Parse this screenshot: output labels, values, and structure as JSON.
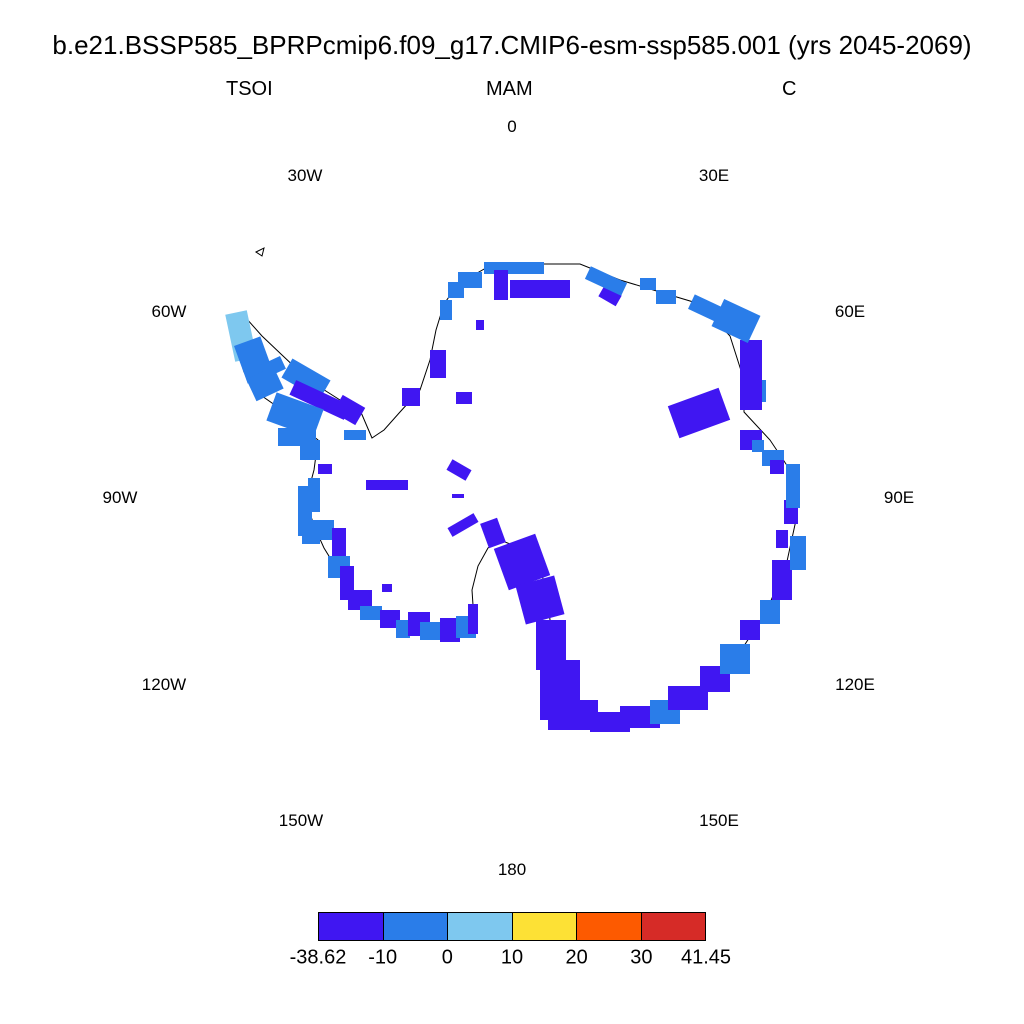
{
  "title": "b.e21.BSSP585_BPRPcmip6.f09_g17.CMIP6-esm-ssp585.001 (yrs 2045-2069)",
  "left_label": "TSOI",
  "center_label": "MAM",
  "right_label": "C",
  "lon_labels": [
    "0",
    "30E",
    "60E",
    "90E",
    "120E",
    "150E",
    "180",
    "150W",
    "120W",
    "90W",
    "60W",
    "30W"
  ],
  "colorbar": {
    "colors": [
      "#4016f2",
      "#2a7de9",
      "#7ec8ef",
      "#fde135",
      "#fd5a00",
      "#d62b27"
    ],
    "ticks": [
      "-38.62",
      "-10",
      "0",
      "10",
      "20",
      "30",
      "41.45"
    ]
  },
  "legend_bins": [
    "-38.62 to -10",
    "-10 to 0",
    "0 to 10",
    "10 to 20",
    "20 to 30",
    "30 to 41.45"
  ]
}
